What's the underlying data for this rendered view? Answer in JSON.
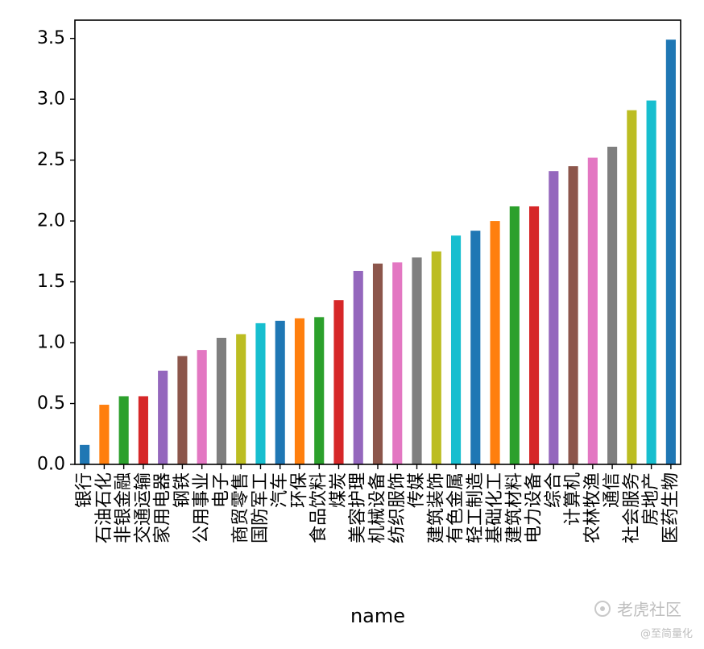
{
  "chart_data": {
    "type": "bar",
    "title": "",
    "xlabel": "name",
    "ylabel": "",
    "ylim": [
      0,
      3.65
    ],
    "yticks": [
      "0.0",
      "0.5",
      "1.0",
      "1.5",
      "2.0",
      "2.5",
      "3.0",
      "3.5"
    ],
    "grid": false,
    "legend": "none",
    "categories": [
      "银行",
      "石油石化",
      "非银金融",
      "交通运输",
      "家用电器",
      "钢铁",
      "公用事业",
      "电子",
      "商贸零售",
      "国防军工",
      "汽车",
      "环保",
      "食品饮料",
      "煤炭",
      "美容护理",
      "机械设备",
      "纺织服饰",
      "传媒",
      "建筑装饰",
      "有色金属",
      "轻工制造",
      "基础化工",
      "建筑材料",
      "电力设备",
      "综合",
      "计算机",
      "农林牧渔",
      "通信",
      "社会服务",
      "房地产",
      "医药生物"
    ],
    "values": [
      0.16,
      0.49,
      0.56,
      0.56,
      0.77,
      0.89,
      0.94,
      1.04,
      1.07,
      1.16,
      1.18,
      1.2,
      1.21,
      1.35,
      1.59,
      1.65,
      1.66,
      1.7,
      1.75,
      1.88,
      1.92,
      2.0,
      2.12,
      2.12,
      2.41,
      2.45,
      2.52,
      2.61,
      2.91,
      2.99,
      3.49
    ],
    "colors": [
      "#1f77b4",
      "#ff7f0e",
      "#2ca02c",
      "#d62728",
      "#9467bd",
      "#8c564b",
      "#e377c2",
      "#7f7f7f",
      "#bcbd22",
      "#17becf"
    ]
  },
  "watermark": {
    "line1": "老虎社区",
    "line2": "@至简量化"
  }
}
